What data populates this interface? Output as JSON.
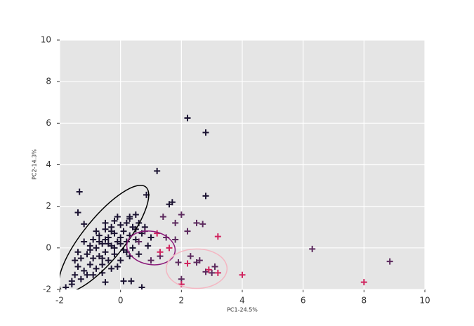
{
  "chart_data": {
    "type": "scatter",
    "xlabel": "PC1-24.5%",
    "ylabel": "PC2-14.3%",
    "xlim": [
      -2,
      10
    ],
    "ylim": [
      -2,
      10
    ],
    "xticks": [
      -2,
      0,
      2,
      4,
      6,
      8,
      10
    ],
    "yticks": [
      -2,
      0,
      2,
      4,
      6,
      8,
      10
    ],
    "grid": true,
    "marker": "+",
    "series": [
      {
        "color": "#1c1433",
        "x": [
          2.2,
          2.8,
          1.2,
          2.8,
          0.85,
          -1.35,
          -1.4,
          -1.2,
          0.5,
          0.3,
          1.6,
          1.7,
          -0.5,
          -1.8,
          -1.6,
          0.1,
          0.35,
          0.7,
          -1.5,
          -1.4,
          -1.3,
          -1.2,
          -1.1,
          -1.0,
          -1.0,
          -0.9,
          -0.9,
          -0.8,
          -0.8,
          -0.7,
          -0.7,
          -0.6,
          -0.6,
          -0.5,
          -0.5,
          -0.4,
          -0.4,
          -0.3,
          -0.3,
          -0.2,
          -0.2,
          -0.1,
          -0.1,
          0.0,
          0.0,
          0.1,
          0.1,
          0.2,
          0.2,
          0.3,
          0.3,
          0.4,
          0.4,
          0.5,
          0.6,
          0.6,
          0.7,
          -1.6,
          -1.3,
          -1.1,
          -0.9,
          -0.6,
          -0.3,
          0.0,
          -1.2,
          -0.8,
          -0.5,
          -0.2,
          -0.6,
          -0.4,
          -0.2,
          0.0,
          -0.7,
          -0.3,
          0.2,
          -1.0,
          0.5,
          0.8,
          -0.1,
          0.3,
          -0.5,
          1.0,
          0.9,
          -1.4,
          -1.5
        ],
        "values": [
          6.25,
          5.55,
          3.7,
          2.5,
          2.55,
          2.7,
          1.7,
          1.15,
          1.6,
          1.5,
          2.1,
          2.2,
          -1.65,
          -1.9,
          -1.75,
          -1.6,
          -1.6,
          -1.9,
          -1.3,
          -0.9,
          -0.5,
          -1.1,
          -0.3,
          -0.8,
          0.1,
          -0.5,
          0.4,
          -1.0,
          0.0,
          0.6,
          -0.4,
          0.2,
          -0.8,
          0.9,
          -0.2,
          0.5,
          -0.6,
          1.0,
          0.1,
          0.7,
          -0.3,
          0.3,
          -0.9,
          1.1,
          0.5,
          -0.1,
          0.8,
          0.3,
          1.2,
          -0.4,
          0.6,
          1.0,
          0.0,
          0.4,
          1.2,
          -0.3,
          0.7,
          -1.6,
          -1.5,
          -1.3,
          -1.3,
          -1.2,
          -1.0,
          -0.6,
          0.3,
          0.8,
          0.4,
          1.3,
          -0.5,
          0.2,
          0.0,
          0.2,
          0.3,
          0.8,
          -0.2,
          -0.1,
          0.9,
          1.0,
          1.5,
          1.4,
          1.2,
          0.5,
          0.1,
          -0.2,
          -0.6
        ]
      },
      {
        "color": "#5c2a5e",
        "x": [
          6.3,
          8.85,
          2.8,
          2.5,
          2.0,
          1.9,
          1.5,
          2.5,
          2.7,
          2.0,
          2.2,
          1.8,
          1.3,
          0.8,
          0.6,
          1.0,
          2.3,
          3.1,
          1.8,
          1.4,
          3.0,
          2.6
        ],
        "values": [
          -0.05,
          -0.65,
          -1.15,
          -0.7,
          -1.5,
          -0.7,
          0.5,
          1.2,
          1.15,
          1.6,
          0.8,
          0.4,
          -0.4,
          0.8,
          0.3,
          -0.6,
          -0.4,
          -0.9,
          1.2,
          1.5,
          -1.2,
          -0.6
        ]
      },
      {
        "color": "#d0245e",
        "x": [
          8.0,
          4.0,
          3.2,
          3.2,
          2.0,
          2.2,
          1.6,
          2.9,
          1.2,
          1.3
        ],
        "values": [
          -1.65,
          -1.3,
          0.55,
          -1.2,
          -1.75,
          -0.75,
          0.0,
          -1.05,
          0.7,
          -0.2
        ]
      }
    ],
    "ellipses": [
      {
        "color": "#000000",
        "center": [
          -0.55,
          0.44
        ],
        "radii": [
          2.19,
          1.0
        ],
        "angle": -51
      },
      {
        "color": "#8b1a7a",
        "center": [
          1.0,
          0.0
        ],
        "radii": [
          0.8,
          0.8
        ],
        "angle": 10
      },
      {
        "color": "#f4b6c2",
        "center": [
          2.5,
          -1.0
        ],
        "radii": [
          1.0,
          0.95
        ],
        "angle": 0
      }
    ]
  }
}
